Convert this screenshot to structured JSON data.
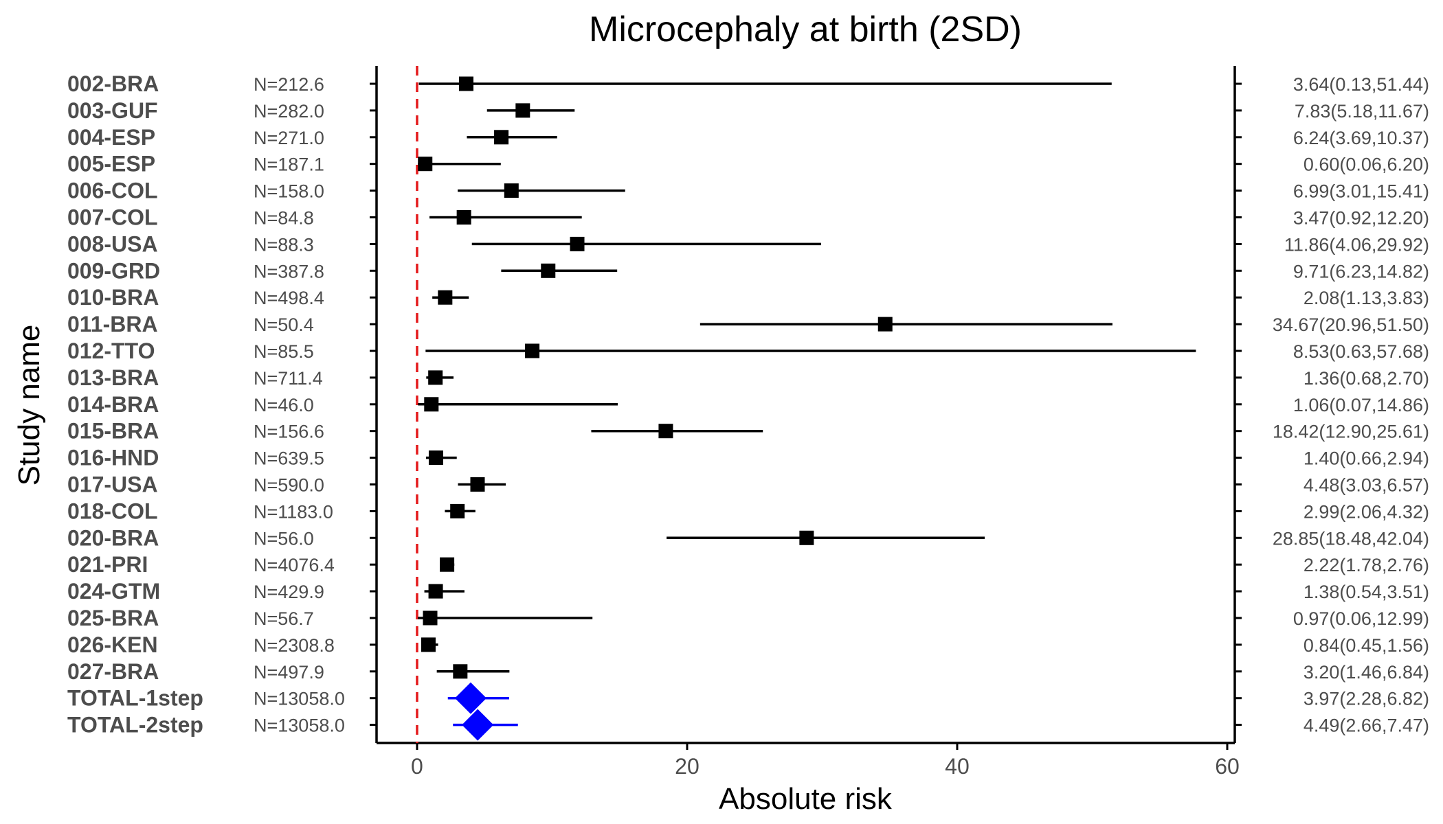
{
  "chart_data": {
    "type": "forest",
    "title": "Microcephaly at birth (2SD)",
    "xlabel": "Absolute risk",
    "ylabel": "Study name",
    "xlim": [
      -3,
      60
    ],
    "x_ticks": [
      0,
      20,
      40,
      60
    ],
    "reference_line": {
      "x": 0,
      "color": "#e41a1c",
      "style": "dashed"
    },
    "colors": {
      "study": "#000000",
      "pooled": "#0000ff"
    },
    "grid": false,
    "rows": [
      {
        "study": "002-BRA",
        "n_label": "N=212.6",
        "estimate": 3.64,
        "lower": 0.13,
        "upper": 51.44,
        "ci_label": "3.64(0.13,51.44)",
        "kind": "study"
      },
      {
        "study": "003-GUF",
        "n_label": "N=282.0",
        "estimate": 7.83,
        "lower": 5.18,
        "upper": 11.67,
        "ci_label": "7.83(5.18,11.67)",
        "kind": "study"
      },
      {
        "study": "004-ESP",
        "n_label": "N=271.0",
        "estimate": 6.24,
        "lower": 3.69,
        "upper": 10.37,
        "ci_label": "6.24(3.69,10.37)",
        "kind": "study"
      },
      {
        "study": "005-ESP",
        "n_label": "N=187.1",
        "estimate": 0.6,
        "lower": 0.06,
        "upper": 6.2,
        "ci_label": "0.60(0.06,6.20)",
        "kind": "study"
      },
      {
        "study": "006-COL",
        "n_label": "N=158.0",
        "estimate": 6.99,
        "lower": 3.01,
        "upper": 15.41,
        "ci_label": "6.99(3.01,15.41)",
        "kind": "study"
      },
      {
        "study": "007-COL",
        "n_label": "N=84.8",
        "estimate": 3.47,
        "lower": 0.92,
        "upper": 12.2,
        "ci_label": "3.47(0.92,12.20)",
        "kind": "study"
      },
      {
        "study": "008-USA",
        "n_label": "N=88.3",
        "estimate": 11.86,
        "lower": 4.06,
        "upper": 29.92,
        "ci_label": "11.86(4.06,29.92)",
        "kind": "study"
      },
      {
        "study": "009-GRD",
        "n_label": "N=387.8",
        "estimate": 9.71,
        "lower": 6.23,
        "upper": 14.82,
        "ci_label": "9.71(6.23,14.82)",
        "kind": "study"
      },
      {
        "study": "010-BRA",
        "n_label": "N=498.4",
        "estimate": 2.08,
        "lower": 1.13,
        "upper": 3.83,
        "ci_label": "2.08(1.13,3.83)",
        "kind": "study"
      },
      {
        "study": "011-BRA",
        "n_label": "N=50.4",
        "estimate": 34.67,
        "lower": 20.96,
        "upper": 51.5,
        "ci_label": "34.67(20.96,51.50)",
        "kind": "study"
      },
      {
        "study": "012-TTO",
        "n_label": "N=85.5",
        "estimate": 8.53,
        "lower": 0.63,
        "upper": 57.68,
        "ci_label": "8.53(0.63,57.68)",
        "kind": "study"
      },
      {
        "study": "013-BRA",
        "n_label": "N=711.4",
        "estimate": 1.36,
        "lower": 0.68,
        "upper": 2.7,
        "ci_label": "1.36(0.68,2.70)",
        "kind": "study"
      },
      {
        "study": "014-BRA",
        "n_label": "N=46.0",
        "estimate": 1.06,
        "lower": 0.07,
        "upper": 14.86,
        "ci_label": "1.06(0.07,14.86)",
        "kind": "study"
      },
      {
        "study": "015-BRA",
        "n_label": "N=156.6",
        "estimate": 18.42,
        "lower": 12.9,
        "upper": 25.61,
        "ci_label": "18.42(12.90,25.61)",
        "kind": "study"
      },
      {
        "study": "016-HND",
        "n_label": "N=639.5",
        "estimate": 1.4,
        "lower": 0.66,
        "upper": 2.94,
        "ci_label": "1.40(0.66,2.94)",
        "kind": "study"
      },
      {
        "study": "017-USA",
        "n_label": "N=590.0",
        "estimate": 4.48,
        "lower": 3.03,
        "upper": 6.57,
        "ci_label": "4.48(3.03,6.57)",
        "kind": "study"
      },
      {
        "study": "018-COL",
        "n_label": "N=1183.0",
        "estimate": 2.99,
        "lower": 2.06,
        "upper": 4.32,
        "ci_label": "2.99(2.06,4.32)",
        "kind": "study"
      },
      {
        "study": "020-BRA",
        "n_label": "N=56.0",
        "estimate": 28.85,
        "lower": 18.48,
        "upper": 42.04,
        "ci_label": "28.85(18.48,42.04)",
        "kind": "study"
      },
      {
        "study": "021-PRI",
        "n_label": "N=4076.4",
        "estimate": 2.22,
        "lower": 1.78,
        "upper": 2.76,
        "ci_label": "2.22(1.78,2.76)",
        "kind": "study"
      },
      {
        "study": "024-GTM",
        "n_label": "N=429.9",
        "estimate": 1.38,
        "lower": 0.54,
        "upper": 3.51,
        "ci_label": "1.38(0.54,3.51)",
        "kind": "study"
      },
      {
        "study": "025-BRA",
        "n_label": "N=56.7",
        "estimate": 0.97,
        "lower": 0.06,
        "upper": 12.99,
        "ci_label": "0.97(0.06,12.99)",
        "kind": "study"
      },
      {
        "study": "026-KEN",
        "n_label": "N=2308.8",
        "estimate": 0.84,
        "lower": 0.45,
        "upper": 1.56,
        "ci_label": "0.84(0.45,1.56)",
        "kind": "study"
      },
      {
        "study": "027-BRA",
        "n_label": "N=497.9",
        "estimate": 3.2,
        "lower": 1.46,
        "upper": 6.84,
        "ci_label": "3.20(1.46,6.84)",
        "kind": "study"
      },
      {
        "study": "TOTAL-1step",
        "n_label": "N=13058.0",
        "estimate": 3.97,
        "lower": 2.28,
        "upper": 6.82,
        "ci_label": "3.97(2.28,6.82)",
        "kind": "pooled"
      },
      {
        "study": "TOTAL-2step",
        "n_label": "N=13058.0",
        "estimate": 4.49,
        "lower": 2.66,
        "upper": 7.47,
        "ci_label": "4.49(2.66,7.47)",
        "kind": "pooled"
      }
    ]
  }
}
